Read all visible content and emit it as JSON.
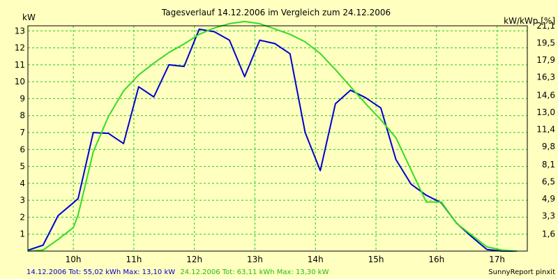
{
  "chart_data": {
    "type": "line",
    "title": "Tagesverlauf 14.12.2006 im Vergleich zum 24.12.2006",
    "ylabel_left": "kW",
    "ylabel_right": "kW/kWp [%]",
    "xlim": [
      9.25,
      17.5
    ],
    "ylim": [
      0,
      13.3
    ],
    "x_ticks": [
      10,
      11,
      12,
      13,
      14,
      15,
      16,
      17
    ],
    "x_tick_labels": [
      "10h",
      "11h",
      "12h",
      "13h",
      "14h",
      "15h",
      "16h",
      "17h"
    ],
    "y_ticks": [
      1,
      2,
      3,
      4,
      5,
      6,
      7,
      8,
      9,
      10,
      11,
      12,
      13
    ],
    "y_tick_labels": [
      "1",
      "2",
      "3",
      "4",
      "5",
      "6",
      "7",
      "8",
      "9",
      "10",
      "11",
      "12",
      "13"
    ],
    "y2_tick_values": [
      1.6,
      3.3,
      4.9,
      6.5,
      8.1,
      9.8,
      11.4,
      13.0,
      14.6,
      16.3,
      17.9,
      19.5,
      21.1
    ],
    "y2_tick_labels": [
      "1,6",
      "3,3",
      "4,9",
      "6,5",
      "8,1",
      "9,8",
      "11,4",
      "13,0",
      "14,6",
      "16,3",
      "17,9",
      "19,5",
      "21,1"
    ],
    "grid": true,
    "series": [
      {
        "name": "14.12.2006",
        "color": "#0000cc",
        "x": [
          9.25,
          9.5,
          9.75,
          10.0,
          10.08,
          10.33,
          10.58,
          10.83,
          11.08,
          11.33,
          11.58,
          11.83,
          12.08,
          12.33,
          12.58,
          12.83,
          13.08,
          13.33,
          13.58,
          13.83,
          14.08,
          14.33,
          14.58,
          14.83,
          15.08,
          15.33,
          15.58,
          15.83,
          16.08,
          16.33,
          16.58,
          16.83,
          17.08,
          17.33
        ],
        "values": [
          0.05,
          0.35,
          2.1,
          2.85,
          3.1,
          7.0,
          6.95,
          6.35,
          9.7,
          9.1,
          11.0,
          10.9,
          13.1,
          12.95,
          12.45,
          10.3,
          12.45,
          12.25,
          11.65,
          7.0,
          4.75,
          8.7,
          9.5,
          9.05,
          8.45,
          5.4,
          3.95,
          3.3,
          2.85,
          1.65,
          0.85,
          0.1,
          0.0,
          0.0
        ],
        "total_label": "14.12.2006 Tot: 55,02 kWh Max: 13,10 kW"
      },
      {
        "name": "24.12.2006",
        "color": "#33dd22",
        "x": [
          9.25,
          9.5,
          9.75,
          10.0,
          10.08,
          10.33,
          10.58,
          10.83,
          11.08,
          11.33,
          11.58,
          11.83,
          12.08,
          12.33,
          12.58,
          12.83,
          13.08,
          13.33,
          13.58,
          13.83,
          14.08,
          14.33,
          14.58,
          14.83,
          15.08,
          15.33,
          15.58,
          15.83,
          16.08,
          16.33,
          16.58,
          16.83,
          17.08,
          17.33
        ],
        "values": [
          0.0,
          0.1,
          1.1,
          2.2,
          3.4,
          9.3,
          12.6,
          15.0,
          16.5,
          17.6,
          18.6,
          19.4,
          20.3,
          20.9,
          21.3,
          21.5,
          21.3,
          20.8,
          20.3,
          19.6,
          18.5,
          17.0,
          15.4,
          13.8,
          12.3,
          10.6,
          7.6,
          4.6,
          4.6,
          2.6,
          1.5,
          0.4,
          0.1,
          0.0
        ],
        "values_axis": "right",
        "total_label": "24.12.2006 Tot: 63,11 kWh Max: 13,30 kW"
      }
    ],
    "credit": "SunnyReport pinxit"
  }
}
